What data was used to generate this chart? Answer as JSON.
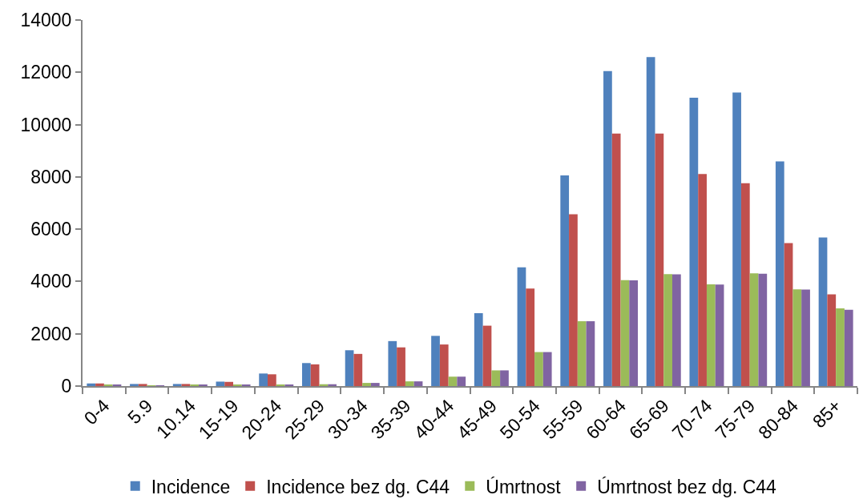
{
  "chart_data": {
    "type": "bar",
    "categories": [
      "0-4",
      "5.9",
      "10.14",
      "15-19",
      "20-24",
      "25-29",
      "30-34",
      "35-39",
      "40-44",
      "45-49",
      "50-54",
      "55-59",
      "60-64",
      "65-69",
      "70-74",
      "75-79",
      "80-84",
      "85+"
    ],
    "series": [
      {
        "name": "Incidence",
        "color": "#4f81bd",
        "values": [
          100,
          80,
          80,
          170,
          480,
          880,
          1370,
          1720,
          1920,
          2790,
          4540,
          8060,
          12050,
          12580,
          11030,
          11230,
          8590,
          5680
        ]
      },
      {
        "name": "Incidence bez dg. C44",
        "color": "#c0504d",
        "values": [
          100,
          80,
          80,
          160,
          450,
          830,
          1230,
          1480,
          1590,
          2310,
          3730,
          6570,
          9660,
          9660,
          8110,
          7760,
          5470,
          3510
        ]
      },
      {
        "name": "Úmrtnost",
        "color": "#9bbb59",
        "values": [
          50,
          30,
          40,
          50,
          60,
          70,
          120,
          180,
          360,
          600,
          1300,
          2480,
          4050,
          4280,
          3890,
          4310,
          3700,
          2970
        ]
      },
      {
        "name": "Úmrtnost bez dg. C44",
        "color": "#8064a2",
        "values": [
          50,
          30,
          40,
          50,
          60,
          70,
          120,
          180,
          360,
          600,
          1300,
          2480,
          4040,
          4270,
          3880,
          4300,
          3690,
          2920
        ]
      }
    ],
    "ylim": [
      0,
      14000
    ],
    "yticks": [
      0,
      2000,
      4000,
      6000,
      8000,
      10000,
      12000,
      14000
    ],
    "legend": "bottom"
  }
}
